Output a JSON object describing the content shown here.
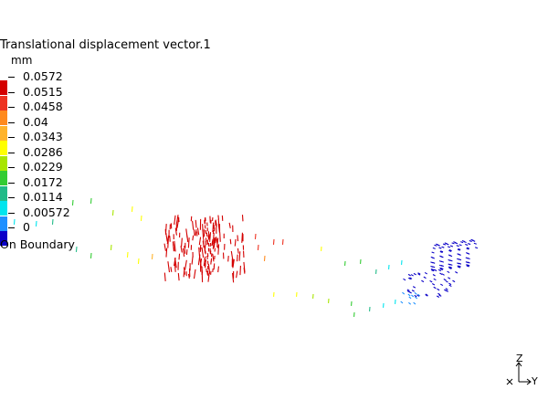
{
  "legend": {
    "title": "Translational displacement vector.1",
    "unit": "mm",
    "entries": [
      {
        "label": "0.0572",
        "color": "#d40000"
      },
      {
        "label": "0.0515",
        "color": "#ee3322"
      },
      {
        "label": "0.0458",
        "color": "#ff8a1e"
      },
      {
        "label": "0.04",
        "color": "#ffb32c"
      },
      {
        "label": "0.0343",
        "color": "#ffff00"
      },
      {
        "label": "0.0286",
        "color": "#a8e600"
      },
      {
        "label": "0.0229",
        "color": "#33cc33"
      },
      {
        "label": "0.0172",
        "color": "#22bb88"
      },
      {
        "label": "0.0114",
        "color": "#00e5ee"
      },
      {
        "label": "0.00572",
        "color": "#1e90ff"
      },
      {
        "label": "0",
        "color": "#0a00c8"
      }
    ],
    "boundary_label": "On Boundary"
  },
  "axes": {
    "z_label": "Z",
    "y_label": "Y"
  }
}
